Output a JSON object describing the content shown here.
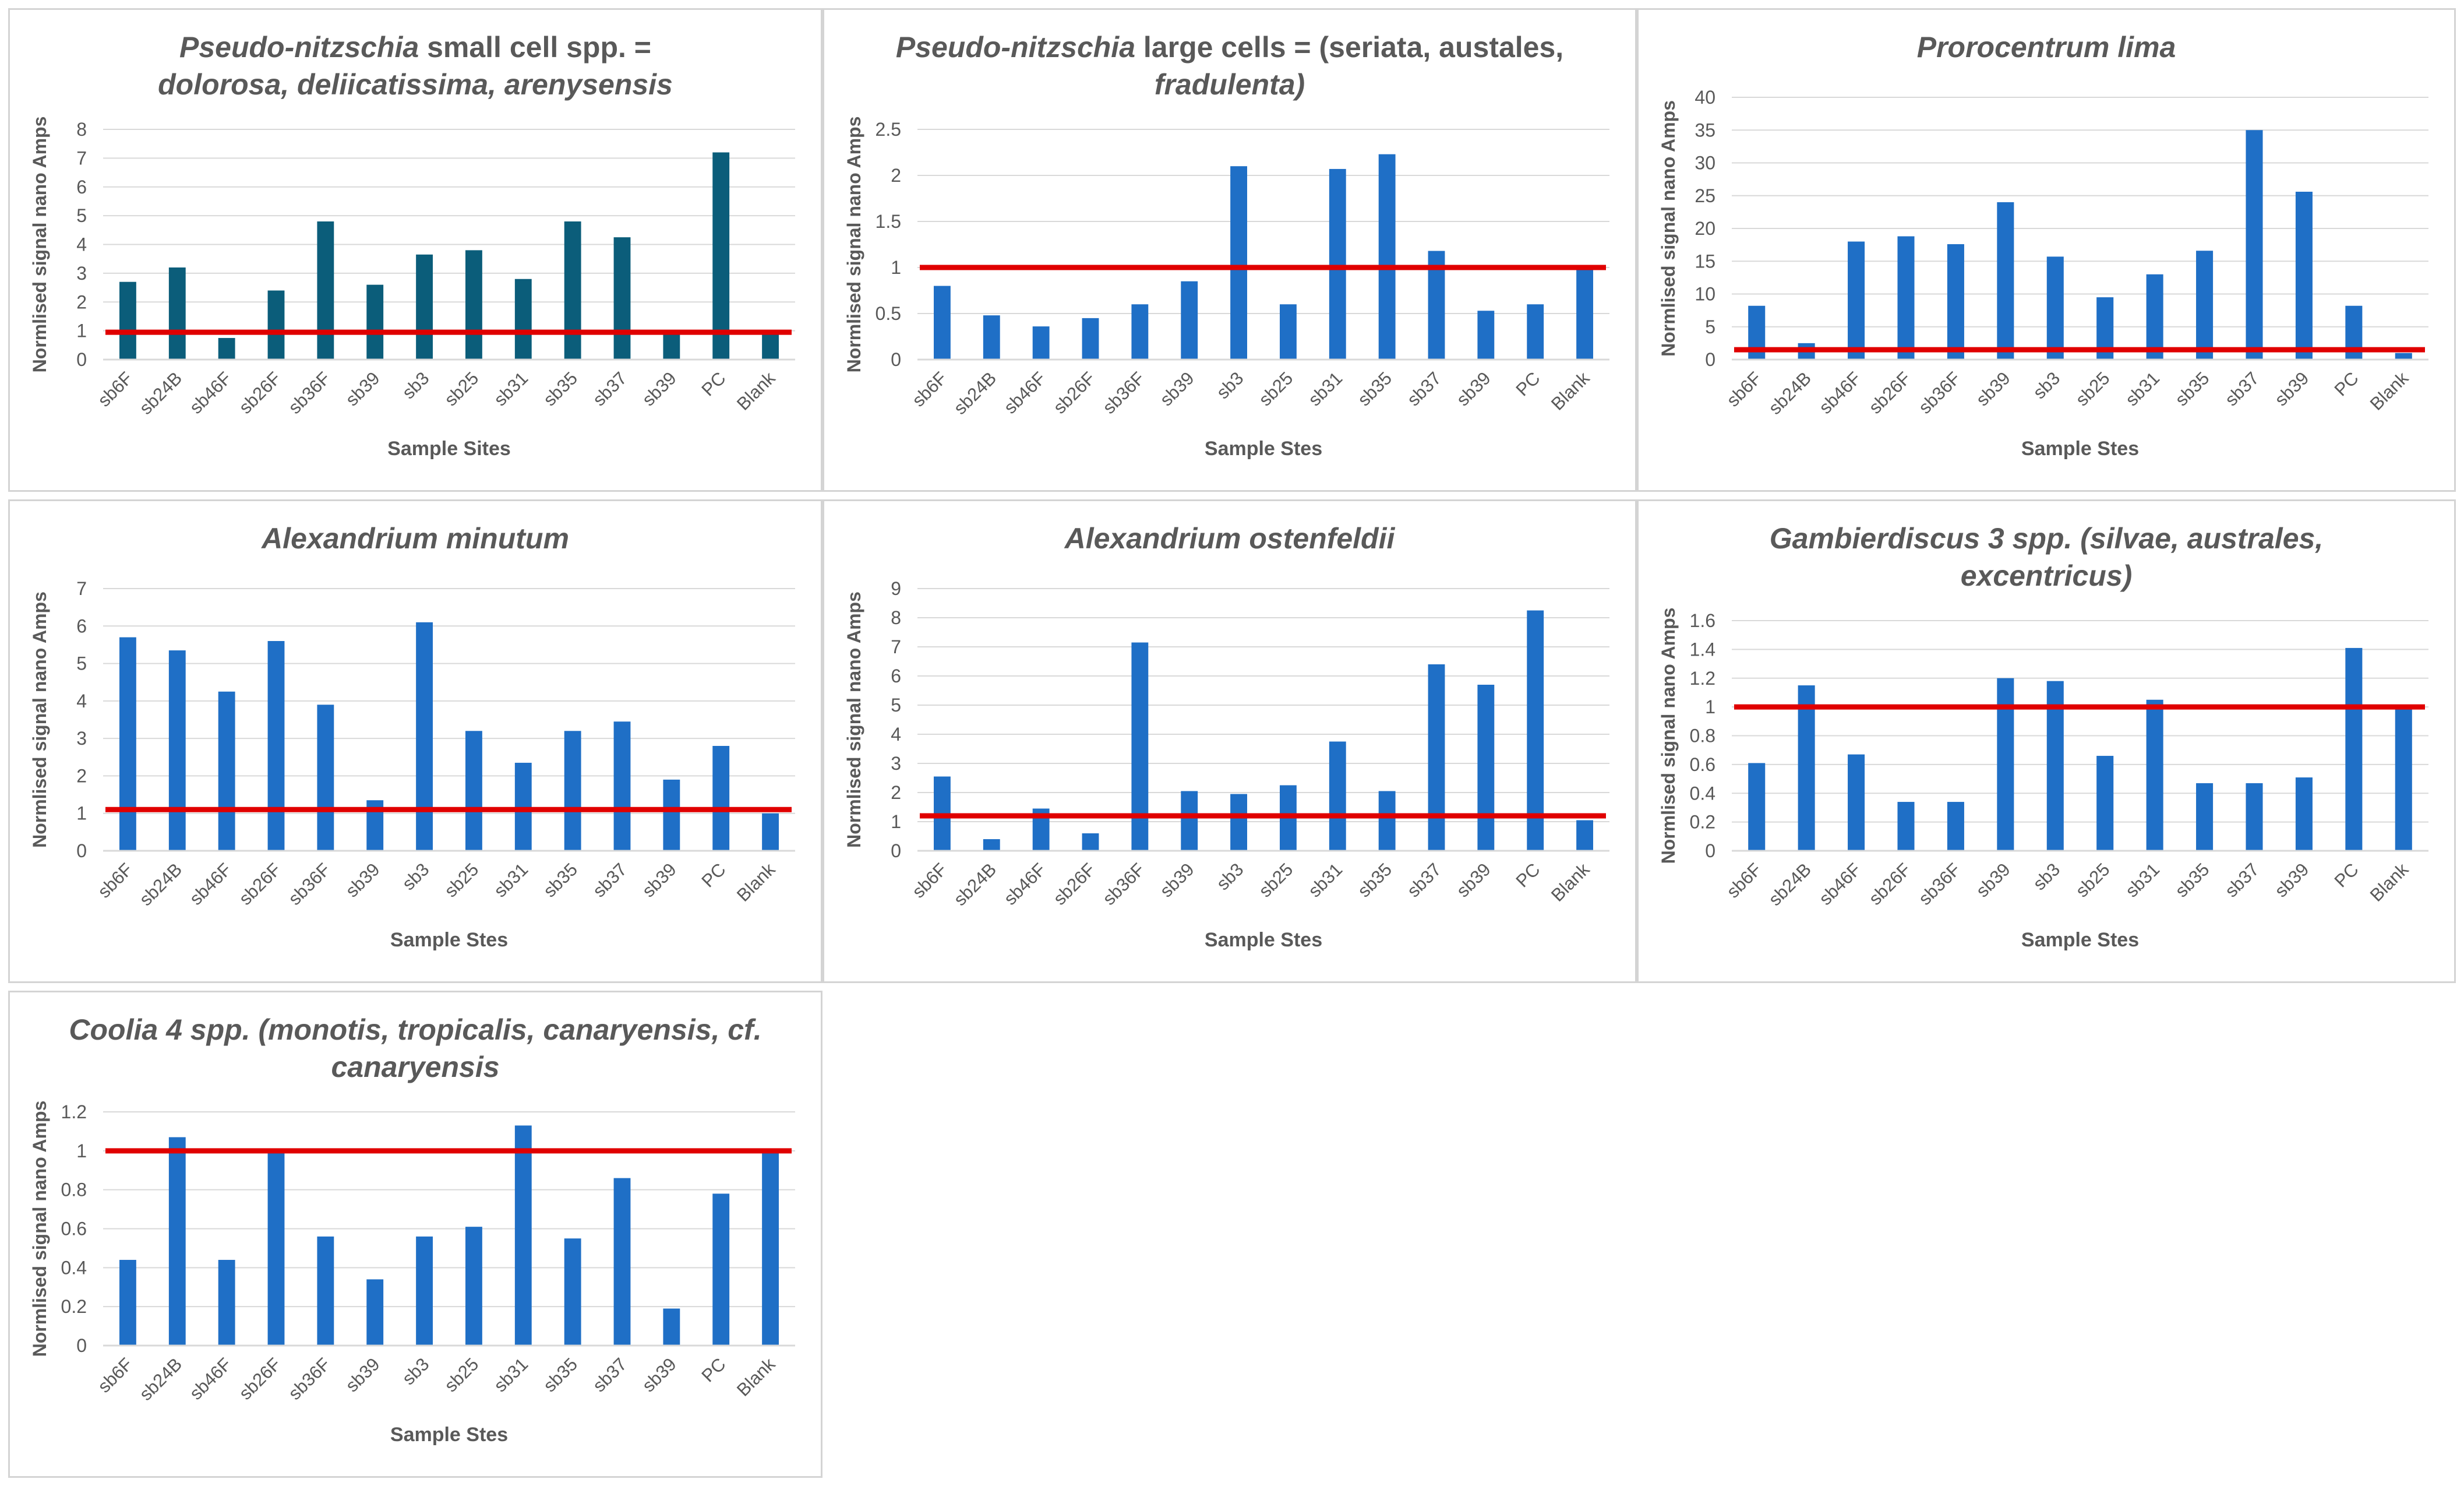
{
  "colors": {
    "bar_teal": "#0b5d7a",
    "bar_blue": "#1f6fc6",
    "threshold": "#e00000",
    "axis_text": "#595959",
    "gridline": "#d9d9d9"
  },
  "chart_data": [
    {
      "type": "bar",
      "title_line1_italic": "Pseudo-nitzschia",
      "title_line1_rest": " small cell spp. =",
      "title_line2": "dolorosa, deliicatissima, arenysensis",
      "ylabel": "Normlised signal nano Amps",
      "xlabel": "Sample Sites",
      "ylim": [
        0,
        8
      ],
      "yticks": [
        0,
        1,
        2,
        3,
        4,
        5,
        6,
        7,
        8
      ],
      "categories": [
        "sb6F",
        "sb24B",
        "sb46F",
        "sb26F",
        "sb36F",
        "sb39",
        "sb3",
        "sb25",
        "sb31",
        "sb35",
        "sb37",
        "sb39",
        "PC",
        "Blank"
      ],
      "values": [
        2.7,
        3.2,
        0.75,
        2.4,
        4.8,
        2.6,
        3.65,
        3.8,
        2.8,
        4.8,
        4.25,
        0.9,
        7.2,
        1.0
      ],
      "threshold": 0.95,
      "bar_color": "teal"
    },
    {
      "type": "bar",
      "title_line1_italic": "Pseudo-nitzschia",
      "title_line1_rest": " large cells = (seriata, austales,",
      "title_line2": "fradulenta)",
      "ylabel": "Normlised signal nano Amps",
      "xlabel": "Sample Stes",
      "ylim": [
        0,
        2.5
      ],
      "yticks": [
        0,
        0.5,
        1,
        1.5,
        2,
        2.5
      ],
      "categories": [
        "sb6F",
        "sb24B",
        "sb46F",
        "sb26F",
        "sb36F",
        "sb39",
        "sb3",
        "sb25",
        "sb31",
        "sb35",
        "sb37",
        "sb39",
        "PC",
        "Blank"
      ],
      "values": [
        0.8,
        0.48,
        0.36,
        0.45,
        0.6,
        0.85,
        2.1,
        0.6,
        2.07,
        2.23,
        1.18,
        0.53,
        0.6,
        1.0
      ],
      "threshold": 1.0,
      "bar_color": "blue"
    },
    {
      "type": "bar",
      "title_line1_italic": "Prorocentrum lima",
      "title_line1_rest": "",
      "title_line2": "",
      "ylabel": "Normlised signal nano Amps",
      "xlabel": "Sample Stes",
      "ylim": [
        0,
        40
      ],
      "yticks": [
        0,
        5,
        10,
        15,
        20,
        25,
        30,
        35,
        40
      ],
      "categories": [
        "sb6F",
        "sb24B",
        "sb46F",
        "sb26F",
        "sb36F",
        "sb39",
        "sb3",
        "sb25",
        "sb31",
        "sb35",
        "sb37",
        "sb39",
        "PC",
        "Blank"
      ],
      "values": [
        8.2,
        2.5,
        18,
        18.8,
        17.6,
        24,
        15.7,
        9.5,
        13,
        16.6,
        35,
        25.6,
        8.2,
        1.0
      ],
      "threshold": 1.5,
      "bar_color": "blue"
    },
    {
      "type": "bar",
      "title_line1_italic": "Alexandrium minutum",
      "title_line1_rest": "",
      "title_line2": "",
      "ylabel": "Normlised signal nano Amps",
      "xlabel": "Sample Stes",
      "ylim": [
        0,
        7
      ],
      "yticks": [
        0,
        1,
        2,
        3,
        4,
        5,
        6,
        7
      ],
      "categories": [
        "sb6F",
        "sb24B",
        "sb46F",
        "sb26F",
        "sb36F",
        "sb39",
        "sb3",
        "sb25",
        "sb31",
        "sb35",
        "sb37",
        "sb39",
        "PC",
        "Blank"
      ],
      "values": [
        5.7,
        5.35,
        4.25,
        5.6,
        3.9,
        1.35,
        6.1,
        3.2,
        2.35,
        3.2,
        3.45,
        1.9,
        2.8,
        1.0
      ],
      "threshold": 1.1,
      "bar_color": "blue"
    },
    {
      "type": "bar",
      "title_line1_italic": "Alexandrium ostenfeldii",
      "title_line1_rest": "",
      "title_line2": "",
      "ylabel": "Normlised signal nano Amps",
      "xlabel": "Sample Stes",
      "ylim": [
        0,
        9
      ],
      "yticks": [
        0,
        1,
        2,
        3,
        4,
        5,
        6,
        7,
        8,
        9
      ],
      "categories": [
        "sb6F",
        "sb24B",
        "sb46F",
        "sb26F",
        "sb36F",
        "sb39",
        "sb3",
        "sb25",
        "sb31",
        "sb35",
        "sb37",
        "sb39",
        "PC",
        "Blank"
      ],
      "values": [
        2.55,
        0.4,
        1.45,
        0.6,
        7.15,
        2.05,
        1.95,
        2.25,
        3.75,
        2.05,
        6.4,
        5.7,
        8.25,
        1.05
      ],
      "threshold": 1.2,
      "bar_color": "blue"
    },
    {
      "type": "bar",
      "title_line1_italic": "Gambierdiscus 3 spp. (silvae, australes,",
      "title_line1_rest": "",
      "title_line2": "excentricus)",
      "ylabel": "Normlised signal nano Amps",
      "xlabel": "Sample Stes",
      "ylim": [
        0,
        1.6
      ],
      "yticks": [
        0,
        0.2,
        0.4,
        0.6,
        0.8,
        1,
        1.2,
        1.4,
        1.6
      ],
      "categories": [
        "sb6F",
        "sb24B",
        "sb46F",
        "sb26F",
        "sb36F",
        "sb39",
        "sb3",
        "sb25",
        "sb31",
        "sb35",
        "sb37",
        "sb39",
        "PC",
        "Blank"
      ],
      "values": [
        0.61,
        1.15,
        0.67,
        0.34,
        0.34,
        1.2,
        1.18,
        0.66,
        1.05,
        0.47,
        0.47,
        0.51,
        1.41,
        1.0
      ],
      "threshold": 1.0,
      "bar_color": "blue"
    },
    {
      "type": "bar",
      "title_line1_italic": "Coolia 4 spp. (monotis, tropicalis, canaryensis, cf.",
      "title_line1_rest": "",
      "title_line2": "canaryensis",
      "ylabel": "Normlised signal nano Amps",
      "xlabel": "Sample Stes",
      "ylim": [
        0,
        1.2
      ],
      "yticks": [
        0,
        0.2,
        0.4,
        0.6,
        0.8,
        1,
        1.2
      ],
      "categories": [
        "sb6F",
        "sb24B",
        "sb46F",
        "sb26F",
        "sb36F",
        "sb39",
        "sb3",
        "sb25",
        "sb31",
        "sb35",
        "sb37",
        "sb39",
        "PC",
        "Blank"
      ],
      "values": [
        0.44,
        1.07,
        0.44,
        1.0,
        0.56,
        0.34,
        0.56,
        0.61,
        1.13,
        0.55,
        0.86,
        0.19,
        0.78,
        1.0
      ],
      "threshold": 1.0,
      "bar_color": "blue"
    }
  ]
}
